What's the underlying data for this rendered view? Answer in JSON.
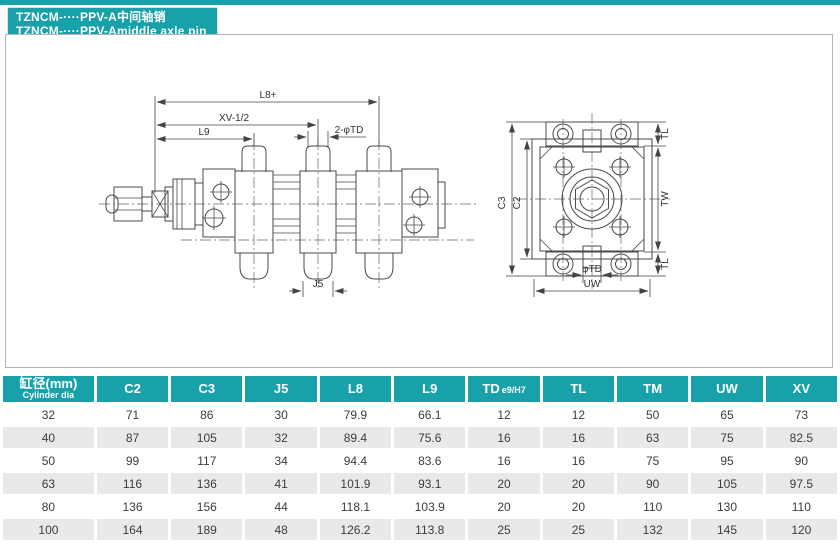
{
  "page": {
    "accent_color": "#18a1a9",
    "title_line1": "TZNCM-····PPV-A中间轴销",
    "title_line2": "TZNCM-····PPV-Amiddle axle pin"
  },
  "drawing": {
    "side_labels": {
      "l8": "L8+",
      "xv": "XV-1/2",
      "l9": "L9",
      "td2": "2-φTD",
      "j5": "J5"
    },
    "end_labels": {
      "c3": "C3",
      "c2": "C2",
      "tl_top": "TL",
      "tw": "TW",
      "tl_bottom": "TL",
      "td": "φTD",
      "uw": "UW"
    }
  },
  "table": {
    "header": {
      "col0_zh": "缸径(mm)",
      "col0_en": "Cylinder dia",
      "cols": [
        {
          "label": "C2"
        },
        {
          "label": "C3"
        },
        {
          "label": "J5"
        },
        {
          "label": "L8"
        },
        {
          "label": "L9"
        },
        {
          "label": "TD",
          "sub": "e9/H7"
        },
        {
          "label": "TL"
        },
        {
          "label": "TM"
        },
        {
          "label": "UW"
        },
        {
          "label": "XV"
        }
      ]
    },
    "rows": [
      {
        "dia": "32",
        "values": [
          "71",
          "86",
          "30",
          "79.9",
          "66.1",
          "12",
          "12",
          "50",
          "65",
          "73"
        ]
      },
      {
        "dia": "40",
        "values": [
          "87",
          "105",
          "32",
          "89.4",
          "75.6",
          "16",
          "16",
          "63",
          "75",
          "82.5"
        ]
      },
      {
        "dia": "50",
        "values": [
          "99",
          "117",
          "34",
          "94.4",
          "83.6",
          "16",
          "16",
          "75",
          "95",
          "90"
        ]
      },
      {
        "dia": "63",
        "values": [
          "116",
          "136",
          "41",
          "101.9",
          "93.1",
          "20",
          "20",
          "90",
          "105",
          "97.5"
        ]
      },
      {
        "dia": "80",
        "values": [
          "136",
          "156",
          "44",
          "118.1",
          "103.9",
          "20",
          "20",
          "110",
          "130",
          "110"
        ]
      },
      {
        "dia": "100",
        "values": [
          "164",
          "189",
          "48",
          "126.2",
          "113.8",
          "25",
          "25",
          "132",
          "145",
          "120"
        ]
      }
    ]
  }
}
